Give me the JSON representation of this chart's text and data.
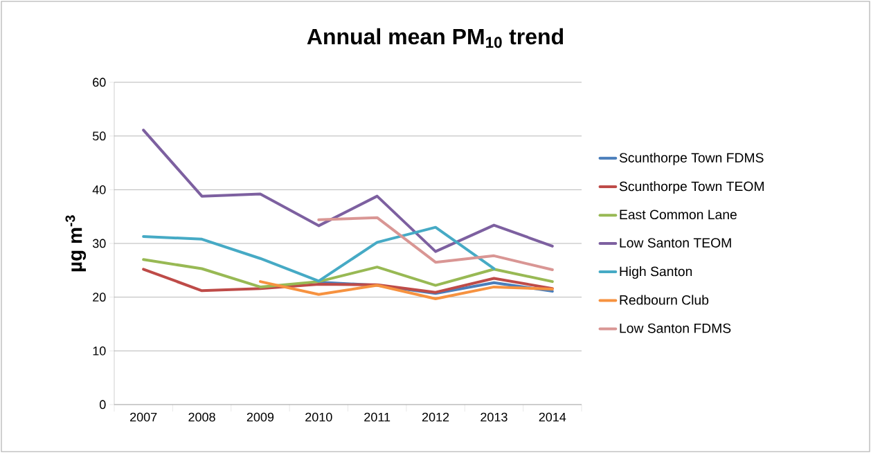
{
  "chart_data": {
    "type": "line",
    "title": "Annual mean PM$_{10}$ trend",
    "ylabel": "µg m$^{-3}$",
    "categories": [
      "2007",
      "2008",
      "2009",
      "2010",
      "2011",
      "2012",
      "2013",
      "2014"
    ],
    "ylim": [
      0,
      60
    ],
    "yticks": [
      0,
      10,
      20,
      30,
      40,
      50,
      60
    ],
    "grid": "y",
    "legend": "right",
    "marker": "none",
    "line_style": "solid",
    "series": [
      {
        "name": "Scunthorpe Town FDMS",
        "color": "#4a7ebb",
        "values": [
          null,
          null,
          null,
          22.8,
          22.2,
          20.7,
          22.7,
          21.1
        ]
      },
      {
        "name": "Scunthorpe Town TEOM",
        "color": "#be4b48",
        "values": [
          25.2,
          21.2,
          21.6,
          22.4,
          22.3,
          20.9,
          23.5,
          21.6
        ]
      },
      {
        "name": "East Common Lane",
        "color": "#98b954",
        "values": [
          27.0,
          25.3,
          21.9,
          22.9,
          25.6,
          22.2,
          25.2,
          22.9
        ]
      },
      {
        "name": "Low Santon TEOM",
        "color": "#7d60a0",
        "values": [
          51.1,
          38.8,
          39.2,
          33.3,
          38.8,
          28.5,
          33.4,
          29.5
        ]
      },
      {
        "name": "High Santon",
        "color": "#46aac5",
        "values": [
          31.3,
          30.8,
          27.2,
          23.0,
          30.2,
          33.0,
          25.3,
          null
        ]
      },
      {
        "name": "Redbourn Club",
        "color": "#f69240",
        "values": [
          null,
          null,
          22.9,
          20.5,
          22.2,
          19.7,
          21.9,
          21.5
        ]
      },
      {
        "name": "Low Santon FDMS",
        "color": "#d99694",
        "values": [
          null,
          null,
          null,
          34.4,
          34.8,
          26.5,
          27.7,
          25.1
        ]
      }
    ]
  }
}
